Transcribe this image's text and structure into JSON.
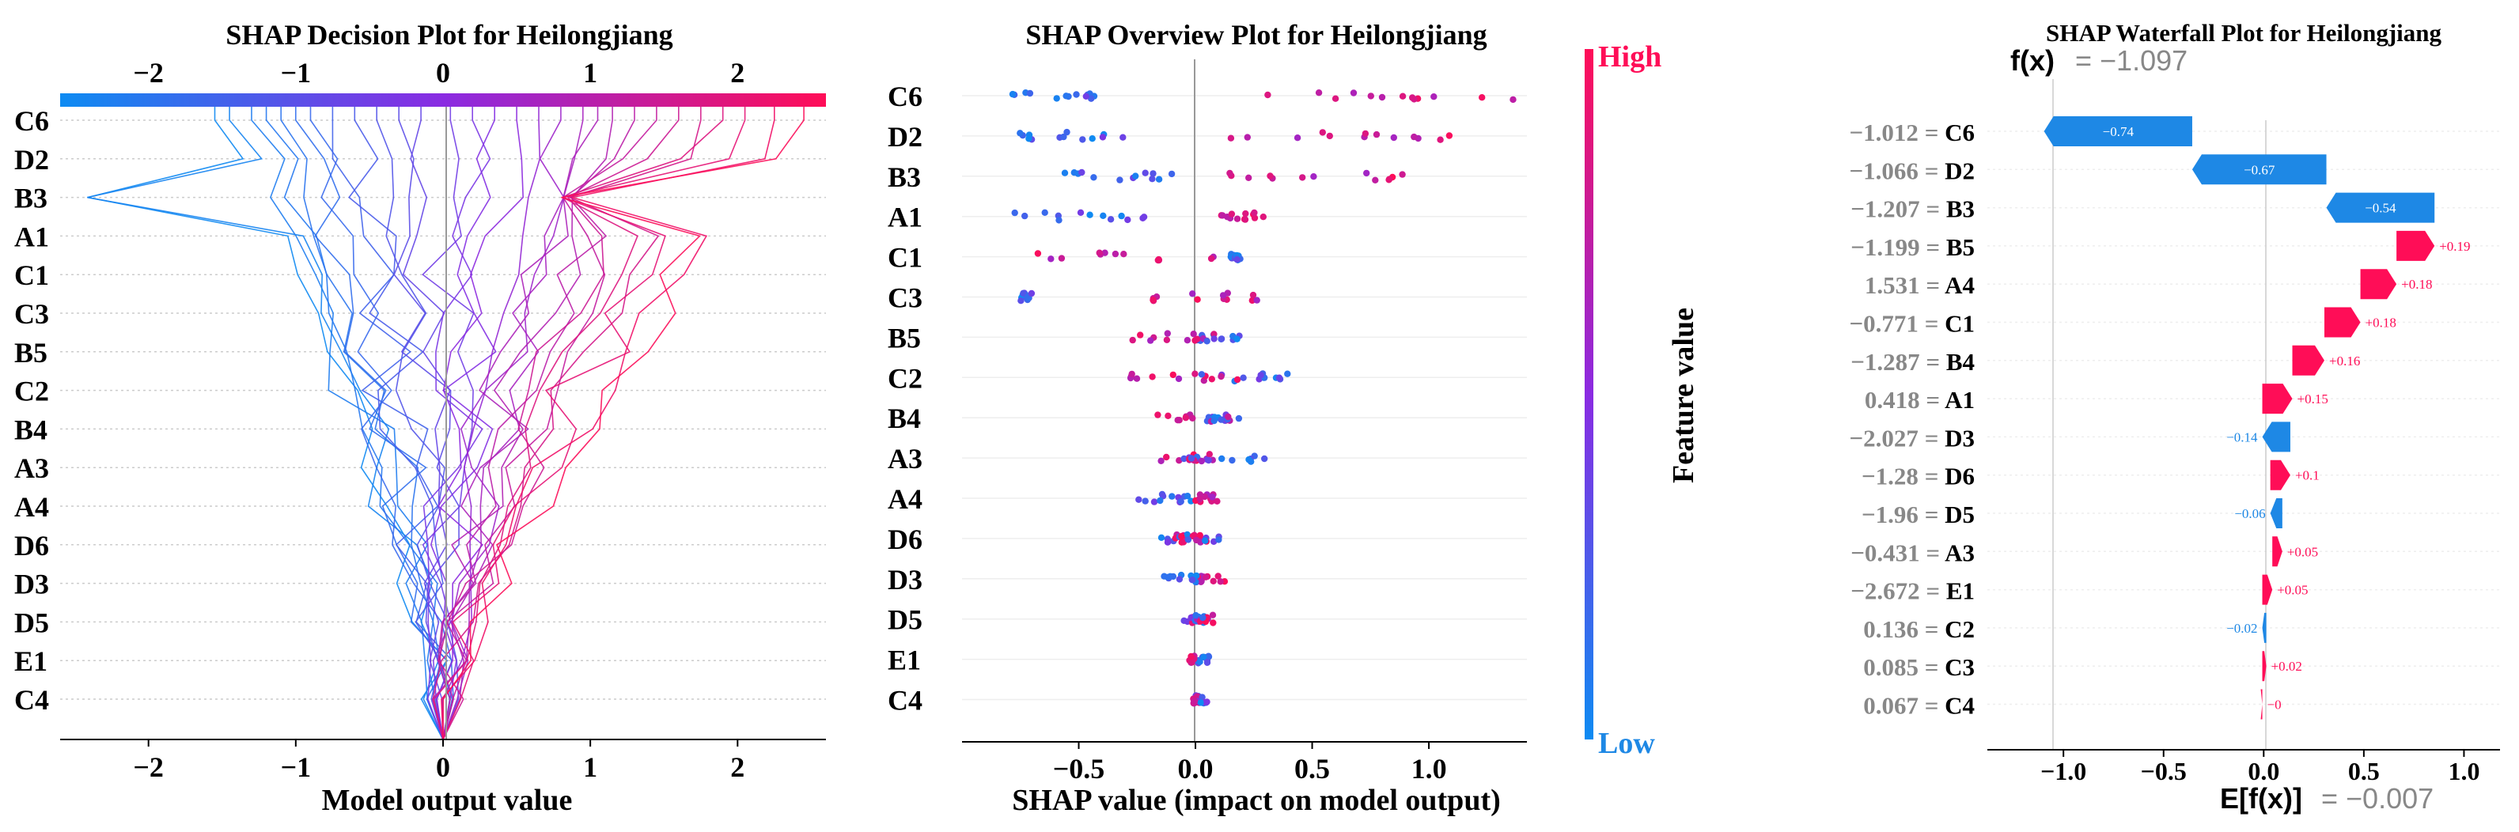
{
  "colors": {
    "low": "#1e88e5",
    "high": "#ff0d57",
    "mid": "#8a2be2",
    "grid": "#cccccc",
    "gray": "#888888"
  },
  "chart_data": [
    {
      "type": "decision",
      "title": "SHAP Decision Plot for Heilongjiang",
      "xlabel": "Model output value",
      "xlim": [
        -2.6,
        2.6
      ],
      "xticks": [
        -2,
        -1,
        0,
        1,
        2
      ],
      "base_value": 0,
      "features": [
        "C6",
        "D2",
        "B3",
        "A1",
        "C1",
        "C3",
        "B5",
        "C2",
        "B4",
        "A3",
        "A4",
        "D6",
        "D3",
        "D5",
        "E1",
        "C4"
      ]
    },
    {
      "type": "scatter",
      "title": "SHAP Overview Plot for Heilongjiang",
      "xlabel": "SHAP value (impact on model output)",
      "xlim": [
        -1.0,
        1.42
      ],
      "xticks": [
        -0.5,
        0.0,
        0.5,
        1.0
      ],
      "features": [
        "C6",
        "D2",
        "B3",
        "A1",
        "C1",
        "C3",
        "B5",
        "C2",
        "B4",
        "A3",
        "A4",
        "D6",
        "D3",
        "D5",
        "E1",
        "C4"
      ],
      "colorbar": {
        "label": "Feature value",
        "high": "High",
        "low": "Low"
      }
    },
    {
      "type": "waterfall",
      "title": "SHAP Waterfall Plot for Heilongjiang",
      "fx_label": "f(x)",
      "fx_value": "= −1.097",
      "efx_label": "E[f(x)]",
      "efx_value": "= −0.007",
      "xlim": [
        -1.38,
        1.18
      ],
      "xticks": [
        -1.0,
        -0.5,
        0.0,
        0.5,
        1.0
      ],
      "base": -0.007,
      "rows": [
        {
          "feature": "C6",
          "value": "−1.012",
          "shap": -0.74,
          "label": "−0.74"
        },
        {
          "feature": "D2",
          "value": "−1.066",
          "shap": -0.67,
          "label": "−0.67"
        },
        {
          "feature": "B3",
          "value": "−1.207",
          "shap": -0.54,
          "label": "−0.54"
        },
        {
          "feature": "B5",
          "value": "−1.199",
          "shap": 0.19,
          "label": "+0.19"
        },
        {
          "feature": "A4",
          "value": "1.531",
          "shap": 0.18,
          "label": "+0.18"
        },
        {
          "feature": "C1",
          "value": "−0.771",
          "shap": 0.18,
          "label": "+0.18"
        },
        {
          "feature": "B4",
          "value": "−1.287",
          "shap": 0.16,
          "label": "+0.16"
        },
        {
          "feature": "A1",
          "value": "0.418",
          "shap": 0.15,
          "label": "+0.15"
        },
        {
          "feature": "D3",
          "value": "−2.027",
          "shap": -0.14,
          "label": "−0.14"
        },
        {
          "feature": "D6",
          "value": "−1.28",
          "shap": 0.1,
          "label": "+0.1"
        },
        {
          "feature": "D5",
          "value": "−1.96",
          "shap": -0.06,
          "label": "−0.06"
        },
        {
          "feature": "A3",
          "value": "−0.431",
          "shap": 0.05,
          "label": "+0.05"
        },
        {
          "feature": "E1",
          "value": "−2.672",
          "shap": 0.05,
          "label": "+0.05"
        },
        {
          "feature": "C2",
          "value": "0.136",
          "shap": -0.02,
          "label": "−0.02"
        },
        {
          "feature": "C3",
          "value": "0.085",
          "shap": 0.02,
          "label": "+0.02"
        },
        {
          "feature": "C4",
          "value": "0.067",
          "shap": 0.0,
          "label": "−0"
        }
      ]
    }
  ]
}
